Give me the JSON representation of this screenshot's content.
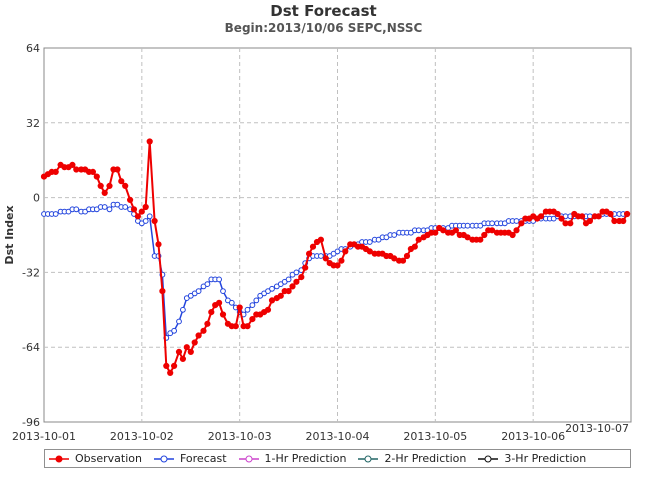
{
  "chart_data": {
    "type": "line",
    "title": "Dst Forecast",
    "subtitle": "Begin:2013/10/06   SEPC,NSSC",
    "xlabel": "",
    "ylabel": "Dst Index",
    "ylim": [
      -96,
      64
    ],
    "yticks": [
      "64",
      "32",
      "0",
      "-32",
      "-64",
      "-96"
    ],
    "xlim": [
      0,
      6
    ],
    "xticks": [
      {
        "x": 0,
        "label": "2013-10-01"
      },
      {
        "x": 1,
        "label": "2013-10-02"
      },
      {
        "x": 2,
        "label": "2013-10-03"
      },
      {
        "x": 3,
        "label": "2013-10-04"
      },
      {
        "x": 4,
        "label": "2013-10-05"
      },
      {
        "x": 5,
        "label": "2013-10-06"
      },
      {
        "x": 6,
        "label": "2013-10-07"
      }
    ],
    "grid": true,
    "legend_position": "bottom",
    "series": [
      {
        "name": "Observation",
        "color": "#ee0000",
        "marker": "filled-circle",
        "points": [
          [
            0.0,
            9
          ],
          [
            0.04,
            10
          ],
          [
            0.08,
            11
          ],
          [
            0.12,
            11
          ],
          [
            0.17,
            14
          ],
          [
            0.21,
            13
          ],
          [
            0.25,
            13
          ],
          [
            0.29,
            14
          ],
          [
            0.33,
            12
          ],
          [
            0.38,
            12
          ],
          [
            0.42,
            12
          ],
          [
            0.46,
            11
          ],
          [
            0.5,
            11
          ],
          [
            0.54,
            9
          ],
          [
            0.58,
            5
          ],
          [
            0.62,
            2
          ],
          [
            0.67,
            5
          ],
          [
            0.71,
            12
          ],
          [
            0.75,
            12
          ],
          [
            0.79,
            7
          ],
          [
            0.83,
            5
          ],
          [
            0.88,
            -1
          ],
          [
            0.92,
            -5
          ],
          [
            0.96,
            -8
          ],
          [
            1.0,
            -6
          ],
          [
            1.04,
            -4
          ],
          [
            1.08,
            24
          ],
          [
            1.13,
            -10
          ],
          [
            1.17,
            -20
          ],
          [
            1.21,
            -40
          ],
          [
            1.25,
            -72
          ],
          [
            1.29,
            -75
          ],
          [
            1.33,
            -72
          ],
          [
            1.38,
            -66
          ],
          [
            1.42,
            -69
          ],
          [
            1.46,
            -64
          ],
          [
            1.5,
            -66
          ],
          [
            1.54,
            -62
          ],
          [
            1.58,
            -59
          ],
          [
            1.63,
            -57
          ],
          [
            1.67,
            -54
          ],
          [
            1.71,
            -49
          ],
          [
            1.75,
            -46
          ],
          [
            1.79,
            -45
          ],
          [
            1.83,
            -50
          ],
          [
            1.88,
            -54
          ],
          [
            1.92,
            -55
          ],
          [
            1.96,
            -55
          ],
          [
            2.0,
            -47
          ],
          [
            2.04,
            -55
          ],
          [
            2.08,
            -55
          ],
          [
            2.13,
            -52
          ],
          [
            2.17,
            -50
          ],
          [
            2.21,
            -50
          ],
          [
            2.25,
            -49
          ],
          [
            2.29,
            -48
          ],
          [
            2.33,
            -44
          ],
          [
            2.38,
            -43
          ],
          [
            2.42,
            -42
          ],
          [
            2.46,
            -40
          ],
          [
            2.5,
            -40
          ],
          [
            2.54,
            -38
          ],
          [
            2.58,
            -36
          ],
          [
            2.63,
            -34
          ],
          [
            2.67,
            -30
          ],
          [
            2.71,
            -24
          ],
          [
            2.75,
            -21
          ],
          [
            2.79,
            -19
          ],
          [
            2.83,
            -18
          ],
          [
            2.88,
            -26
          ],
          [
            2.92,
            -28
          ],
          [
            2.96,
            -29
          ],
          [
            3.0,
            -29
          ],
          [
            3.04,
            -27
          ],
          [
            3.08,
            -23
          ],
          [
            3.13,
            -20
          ],
          [
            3.17,
            -20
          ],
          [
            3.21,
            -21
          ],
          [
            3.25,
            -21
          ],
          [
            3.29,
            -22
          ],
          [
            3.33,
            -23
          ],
          [
            3.38,
            -24
          ],
          [
            3.42,
            -24
          ],
          [
            3.46,
            -24
          ],
          [
            3.5,
            -25
          ],
          [
            3.54,
            -25
          ],
          [
            3.58,
            -26
          ],
          [
            3.63,
            -27
          ],
          [
            3.67,
            -27
          ],
          [
            3.71,
            -25
          ],
          [
            3.75,
            -22
          ],
          [
            3.79,
            -21
          ],
          [
            3.83,
            -18
          ],
          [
            3.88,
            -17
          ],
          [
            3.92,
            -16
          ],
          [
            3.96,
            -15
          ],
          [
            4.0,
            -15
          ],
          [
            4.04,
            -13
          ],
          [
            4.08,
            -14
          ],
          [
            4.13,
            -15
          ],
          [
            4.17,
            -15
          ],
          [
            4.21,
            -14
          ],
          [
            4.25,
            -16
          ],
          [
            4.29,
            -16
          ],
          [
            4.33,
            -17
          ],
          [
            4.38,
            -18
          ],
          [
            4.42,
            -18
          ],
          [
            4.46,
            -18
          ],
          [
            4.5,
            -16
          ],
          [
            4.54,
            -14
          ],
          [
            4.58,
            -14
          ],
          [
            4.63,
            -15
          ],
          [
            4.67,
            -15
          ],
          [
            4.71,
            -15
          ],
          [
            4.75,
            -15
          ],
          [
            4.79,
            -16
          ],
          [
            4.83,
            -14
          ],
          [
            4.88,
            -11
          ],
          [
            4.92,
            -9
          ],
          [
            4.96,
            -9
          ],
          [
            5.0,
            -8
          ],
          [
            5.04,
            -9
          ],
          [
            5.08,
            -8
          ],
          [
            5.13,
            -6
          ],
          [
            5.17,
            -6
          ],
          [
            5.21,
            -6
          ],
          [
            5.25,
            -7
          ],
          [
            5.29,
            -9
          ],
          [
            5.33,
            -11
          ],
          [
            5.38,
            -11
          ],
          [
            5.42,
            -7
          ],
          [
            5.46,
            -8
          ],
          [
            5.5,
            -8
          ],
          [
            5.54,
            -11
          ],
          [
            5.58,
            -10
          ],
          [
            5.63,
            -8
          ],
          [
            5.67,
            -8
          ],
          [
            5.71,
            -6
          ],
          [
            5.75,
            -6
          ],
          [
            5.79,
            -7
          ],
          [
            5.83,
            -10
          ],
          [
            5.88,
            -10
          ],
          [
            5.92,
            -10
          ],
          [
            5.96,
            -7
          ]
        ]
      },
      {
        "name": "Forecast",
        "color": "#2244dd",
        "marker": "open-circle",
        "points": [
          [
            0.0,
            -7
          ],
          [
            0.04,
            -7
          ],
          [
            0.08,
            -7
          ],
          [
            0.12,
            -7
          ],
          [
            0.17,
            -6
          ],
          [
            0.21,
            -6
          ],
          [
            0.25,
            -6
          ],
          [
            0.29,
            -5
          ],
          [
            0.33,
            -5
          ],
          [
            0.38,
            -6
          ],
          [
            0.42,
            -6
          ],
          [
            0.46,
            -5
          ],
          [
            0.5,
            -5
          ],
          [
            0.54,
            -5
          ],
          [
            0.58,
            -4
          ],
          [
            0.62,
            -4
          ],
          [
            0.67,
            -5
          ],
          [
            0.71,
            -3
          ],
          [
            0.75,
            -3
          ],
          [
            0.79,
            -4
          ],
          [
            0.83,
            -4
          ],
          [
            0.88,
            -5
          ],
          [
            0.92,
            -7
          ],
          [
            0.96,
            -10
          ],
          [
            1.0,
            -11
          ],
          [
            1.04,
            -10
          ],
          [
            1.08,
            -8
          ],
          [
            1.13,
            -25
          ],
          [
            1.17,
            -25
          ],
          [
            1.21,
            -33
          ],
          [
            1.25,
            -60
          ],
          [
            1.29,
            -58
          ],
          [
            1.33,
            -57
          ],
          [
            1.38,
            -53
          ],
          [
            1.42,
            -48
          ],
          [
            1.46,
            -43
          ],
          [
            1.5,
            -42
          ],
          [
            1.54,
            -41
          ],
          [
            1.58,
            -40
          ],
          [
            1.63,
            -38
          ],
          [
            1.67,
            -37
          ],
          [
            1.71,
            -35
          ],
          [
            1.75,
            -35
          ],
          [
            1.79,
            -35
          ],
          [
            1.83,
            -40
          ],
          [
            1.88,
            -44
          ],
          [
            1.92,
            -45
          ],
          [
            1.96,
            -47
          ],
          [
            2.0,
            -49
          ],
          [
            2.04,
            -50
          ],
          [
            2.08,
            -48
          ],
          [
            2.13,
            -46
          ],
          [
            2.17,
            -44
          ],
          [
            2.21,
            -42
          ],
          [
            2.25,
            -41
          ],
          [
            2.29,
            -40
          ],
          [
            2.33,
            -39
          ],
          [
            2.38,
            -38
          ],
          [
            2.42,
            -37
          ],
          [
            2.46,
            -36
          ],
          [
            2.5,
            -35
          ],
          [
            2.54,
            -33
          ],
          [
            2.58,
            -32
          ],
          [
            2.63,
            -31
          ],
          [
            2.67,
            -28
          ],
          [
            2.71,
            -26
          ],
          [
            2.75,
            -25
          ],
          [
            2.79,
            -25
          ],
          [
            2.83,
            -25
          ],
          [
            2.88,
            -25
          ],
          [
            2.92,
            -25
          ],
          [
            2.96,
            -24
          ],
          [
            3.0,
            -23
          ],
          [
            3.04,
            -22
          ],
          [
            3.08,
            -22
          ],
          [
            3.13,
            -21
          ],
          [
            3.17,
            -20
          ],
          [
            3.21,
            -20
          ],
          [
            3.25,
            -19
          ],
          [
            3.29,
            -19
          ],
          [
            3.33,
            -19
          ],
          [
            3.38,
            -18
          ],
          [
            3.42,
            -18
          ],
          [
            3.46,
            -17
          ],
          [
            3.5,
            -17
          ],
          [
            3.54,
            -16
          ],
          [
            3.58,
            -16
          ],
          [
            3.63,
            -15
          ],
          [
            3.67,
            -15
          ],
          [
            3.71,
            -15
          ],
          [
            3.75,
            -15
          ],
          [
            3.79,
            -14
          ],
          [
            3.83,
            -14
          ],
          [
            3.88,
            -14
          ],
          [
            3.92,
            -14
          ],
          [
            3.96,
            -13
          ],
          [
            4.0,
            -13
          ],
          [
            4.04,
            -13
          ],
          [
            4.08,
            -13
          ],
          [
            4.13,
            -13
          ],
          [
            4.17,
            -12
          ],
          [
            4.21,
            -12
          ],
          [
            4.25,
            -12
          ],
          [
            4.29,
            -12
          ],
          [
            4.33,
            -12
          ],
          [
            4.38,
            -12
          ],
          [
            4.42,
            -12
          ],
          [
            4.46,
            -12
          ],
          [
            4.5,
            -11
          ],
          [
            4.54,
            -11
          ],
          [
            4.58,
            -11
          ],
          [
            4.63,
            -11
          ],
          [
            4.67,
            -11
          ],
          [
            4.71,
            -11
          ],
          [
            4.75,
            -10
          ],
          [
            4.79,
            -10
          ],
          [
            4.83,
            -10
          ],
          [
            4.88,
            -10
          ],
          [
            4.92,
            -10
          ],
          [
            4.96,
            -10
          ],
          [
            5.0,
            -10
          ],
          [
            5.04,
            -9
          ],
          [
            5.08,
            -9
          ],
          [
            5.13,
            -9
          ],
          [
            5.17,
            -9
          ],
          [
            5.21,
            -9
          ],
          [
            5.25,
            -8
          ],
          [
            5.29,
            -8
          ],
          [
            5.33,
            -8
          ],
          [
            5.38,
            -8
          ],
          [
            5.42,
            -8
          ],
          [
            5.46,
            -8
          ],
          [
            5.5,
            -8
          ],
          [
            5.54,
            -8
          ],
          [
            5.58,
            -8
          ],
          [
            5.63,
            -8
          ],
          [
            5.67,
            -8
          ],
          [
            5.71,
            -7
          ],
          [
            5.75,
            -7
          ],
          [
            5.79,
            -7
          ],
          [
            5.83,
            -7
          ],
          [
            5.88,
            -7
          ],
          [
            5.92,
            -7
          ],
          [
            5.96,
            -7
          ]
        ]
      },
      {
        "name": "1-Hr Prediction",
        "color": "#cc44cc",
        "marker": "open-circle",
        "points": []
      },
      {
        "name": "2-Hr Prediction",
        "color": "#226666",
        "marker": "open-circle",
        "points": []
      },
      {
        "name": "3-Hr Prediction",
        "color": "#111111",
        "marker": "open-circle",
        "points": []
      }
    ]
  }
}
